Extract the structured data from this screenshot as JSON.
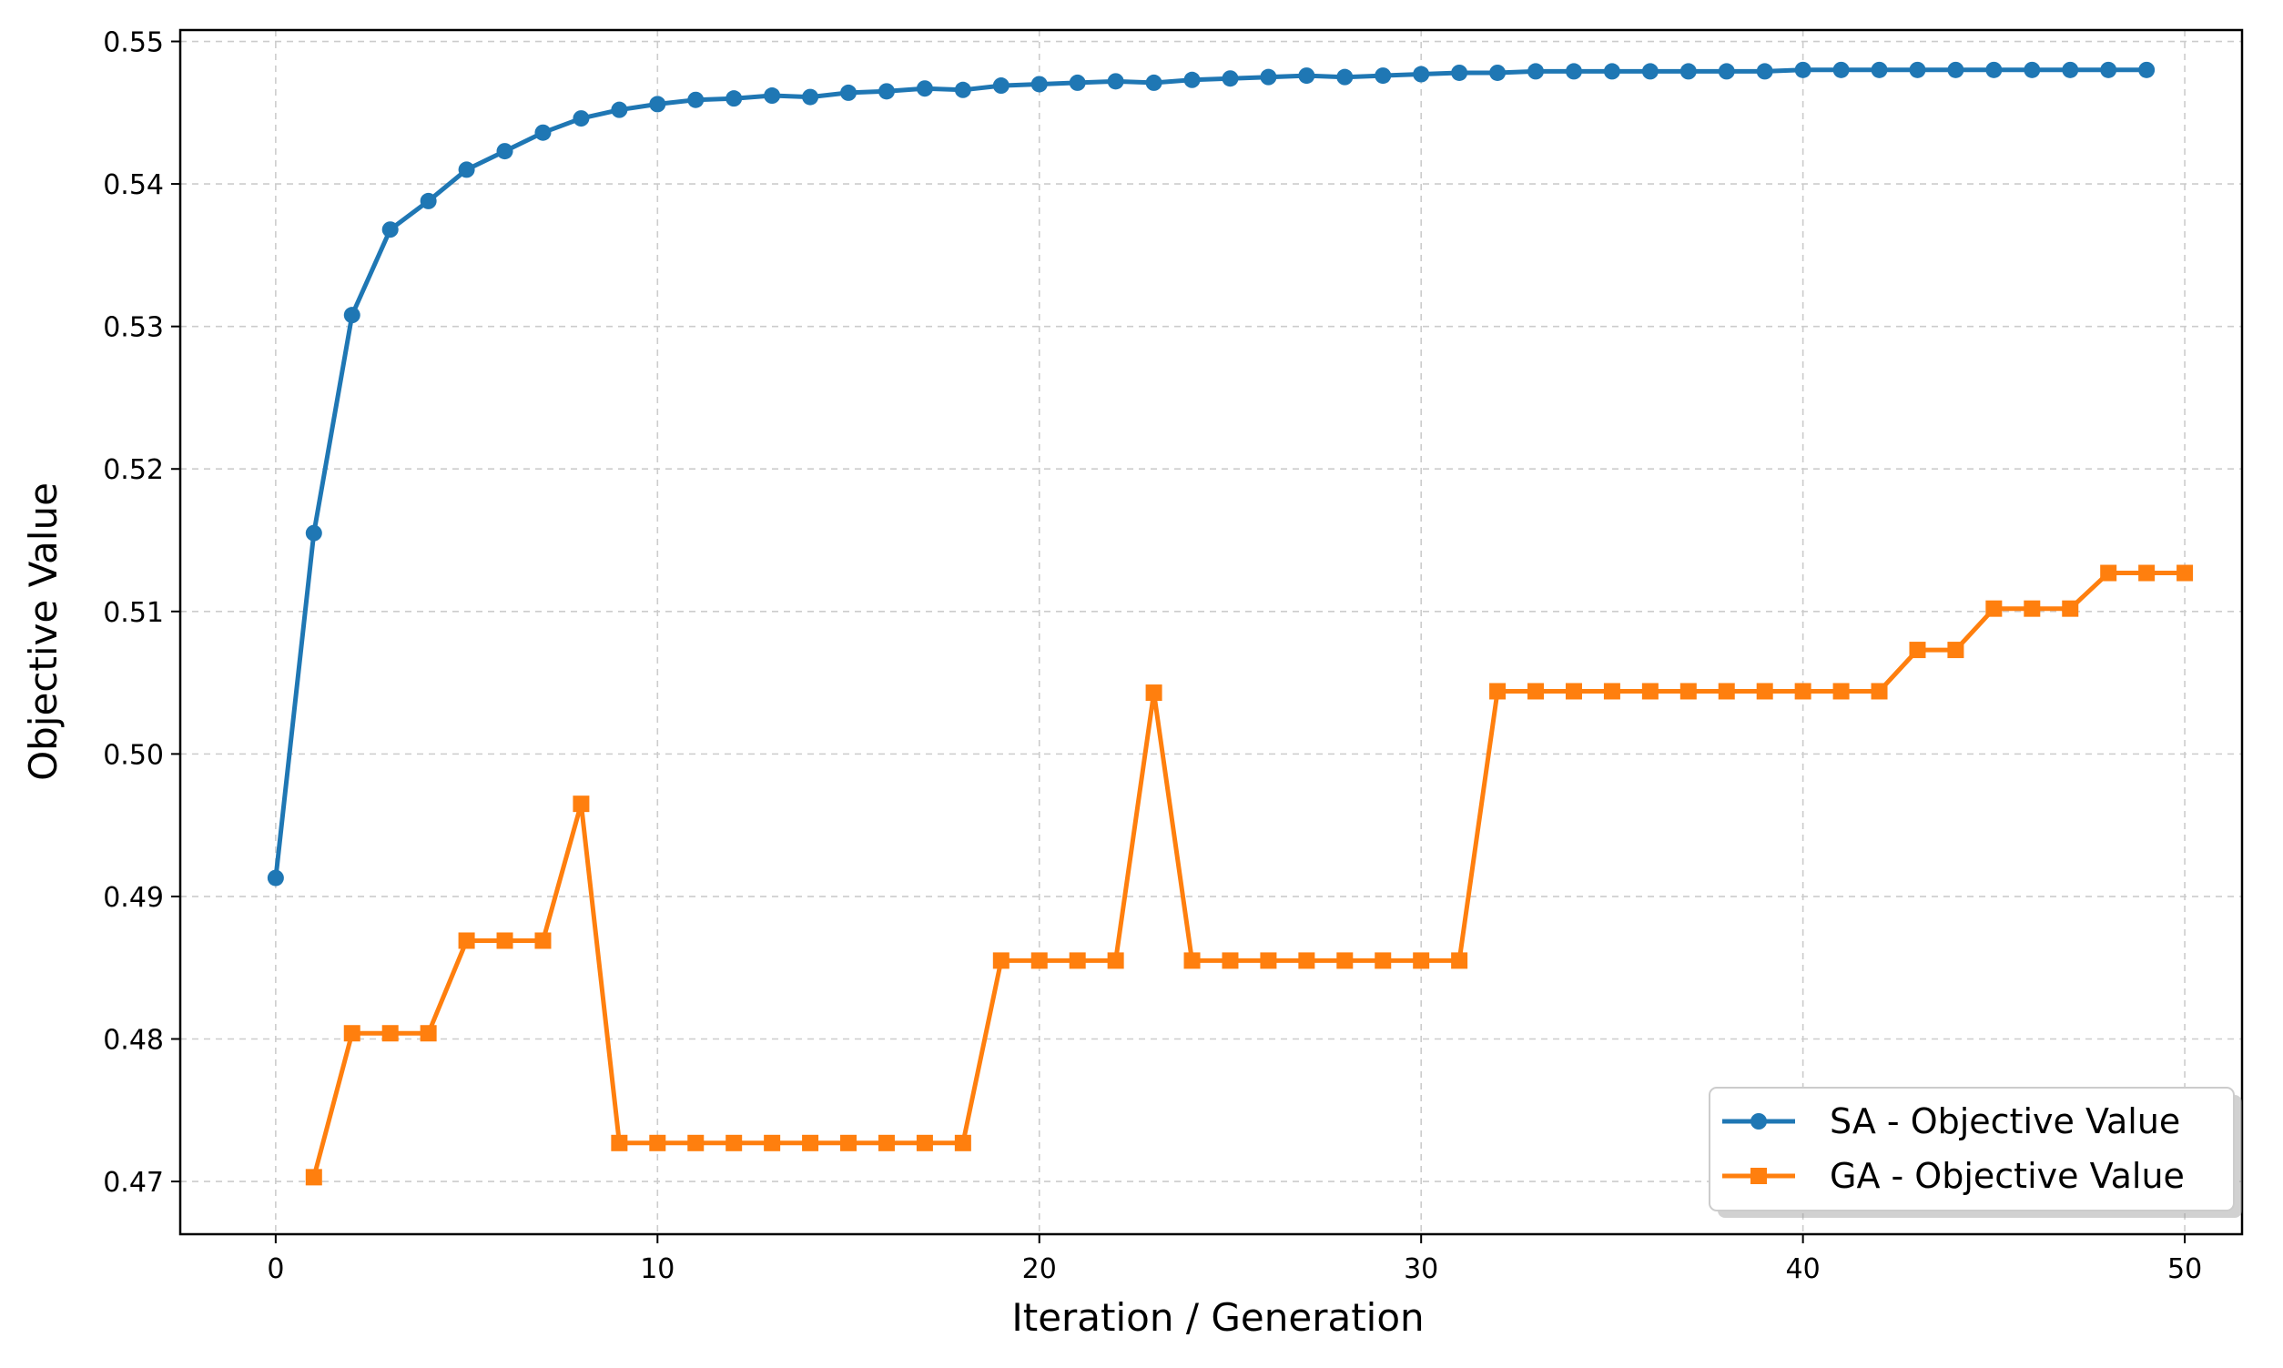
{
  "chart_data": {
    "type": "line",
    "title": "",
    "xlabel": "Iteration / Generation",
    "ylabel": "Objective Value",
    "xlim": [
      -2.5,
      51.5
    ],
    "ylim": [
      0.4663,
      0.5508
    ],
    "xticks": [
      0,
      10,
      20,
      30,
      40,
      50
    ],
    "xtick_labels": [
      "0",
      "10",
      "20",
      "30",
      "40",
      "50"
    ],
    "yticks": [
      0.47,
      0.48,
      0.49,
      0.5,
      0.51,
      0.52,
      0.53,
      0.54,
      0.55
    ],
    "ytick_labels": [
      "0.47",
      "0.48",
      "0.49",
      "0.50",
      "0.51",
      "0.52",
      "0.53",
      "0.54",
      "0.55"
    ],
    "grid": true,
    "legend_position": "bottom-right",
    "series": [
      {
        "name": "SA - Objective Value",
        "color": "#1f77b4",
        "marker": "circle",
        "x": [
          0,
          1,
          2,
          3,
          4,
          5,
          6,
          7,
          8,
          9,
          10,
          11,
          12,
          13,
          14,
          15,
          16,
          17,
          18,
          19,
          20,
          21,
          22,
          23,
          24,
          25,
          26,
          27,
          28,
          29,
          30,
          31,
          32,
          33,
          34,
          35,
          36,
          37,
          38,
          39,
          40,
          41,
          42,
          43,
          44,
          45,
          46,
          47,
          48,
          49
        ],
        "values": [
          0.4913,
          0.5155,
          0.5308,
          0.5368,
          0.5388,
          0.541,
          0.5423,
          0.5436,
          0.5446,
          0.5452,
          0.5456,
          0.5459,
          0.546,
          0.5462,
          0.5461,
          0.5464,
          0.5465,
          0.5467,
          0.5466,
          0.5469,
          0.547,
          0.5471,
          0.5472,
          0.5471,
          0.5473,
          0.5474,
          0.5475,
          0.5476,
          0.5475,
          0.5476,
          0.5477,
          0.5478,
          0.5478,
          0.5479,
          0.5479,
          0.5479,
          0.5479,
          0.5479,
          0.5479,
          0.5479,
          0.548,
          0.548,
          0.548,
          0.548,
          0.548,
          0.548,
          0.548,
          0.548,
          0.548,
          0.548
        ]
      },
      {
        "name": "GA - Objective Value",
        "color": "#ff7f0e",
        "marker": "square",
        "x": [
          1,
          2,
          3,
          4,
          5,
          6,
          7,
          8,
          9,
          10,
          11,
          12,
          13,
          14,
          15,
          16,
          17,
          18,
          19,
          20,
          21,
          22,
          23,
          24,
          25,
          26,
          27,
          28,
          29,
          30,
          31,
          32,
          33,
          34,
          35,
          36,
          37,
          38,
          39,
          40,
          41,
          42,
          43,
          44,
          45,
          46,
          47,
          48,
          49,
          50
        ],
        "values": [
          0.4703,
          0.4804,
          0.4804,
          0.4804,
          0.4869,
          0.4869,
          0.4869,
          0.4965,
          0.4727,
          0.4727,
          0.4727,
          0.4727,
          0.4727,
          0.4727,
          0.4727,
          0.4727,
          0.4727,
          0.4727,
          0.4855,
          0.4855,
          0.4855,
          0.4855,
          0.5043,
          0.4855,
          0.4855,
          0.4855,
          0.4855,
          0.4855,
          0.4855,
          0.4855,
          0.4855,
          0.5044,
          0.5044,
          0.5044,
          0.5044,
          0.5044,
          0.5044,
          0.5044,
          0.5044,
          0.5044,
          0.5044,
          0.5044,
          0.5073,
          0.5073,
          0.5102,
          0.5102,
          0.5102,
          0.5127,
          0.5127,
          0.5127
        ]
      }
    ]
  }
}
